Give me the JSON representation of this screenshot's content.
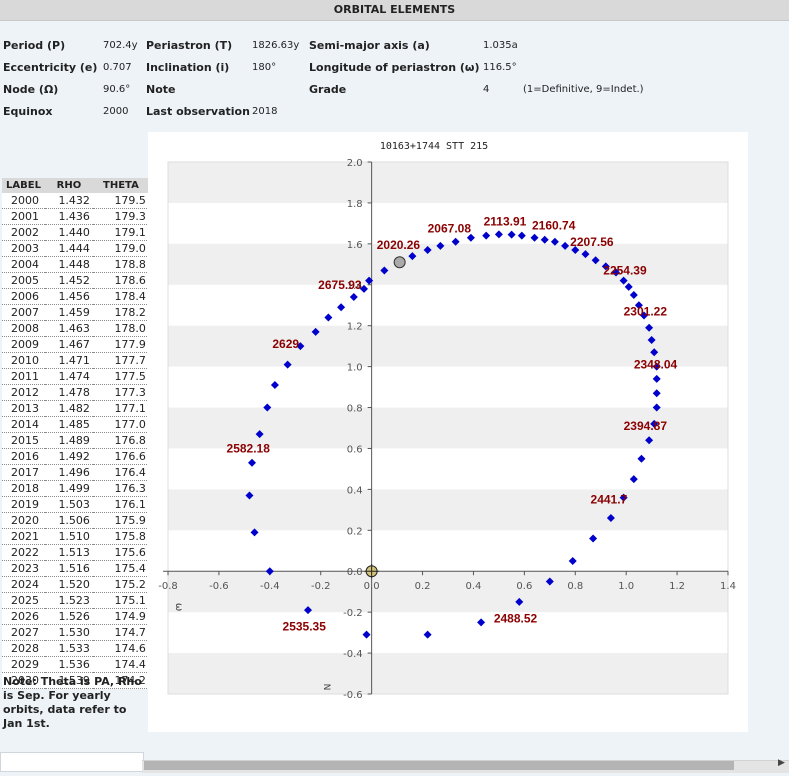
{
  "header": {
    "title": "ORBITAL ELEMENTS"
  },
  "elements": {
    "period": {
      "label": "Period (P)",
      "value": "702.4y"
    },
    "periastron": {
      "label": "Periastron (T)",
      "value": "1826.63y"
    },
    "semi_major": {
      "label": "Semi-major axis (a)",
      "value": "1.035a"
    },
    "eccentricity": {
      "label": "Eccentricity (e)",
      "value": "0.707"
    },
    "inclination": {
      "label": "Inclination (i)",
      "value": "180°"
    },
    "long_periastron": {
      "label": "Longitude of periastron (ω)",
      "value": "116.5°"
    },
    "node": {
      "label": "Node (Ω)",
      "value": "90.6°"
    },
    "note_label": "Note",
    "grade": {
      "label": "Grade",
      "value": "4",
      "hint": "(1=Definitive, 9=Indet.)"
    },
    "equinox": {
      "label": "Equinox",
      "value": "2000"
    },
    "last_obs": {
      "label": "Last observation",
      "value": "2018"
    }
  },
  "table": {
    "headers": [
      "LABEL",
      "RHO",
      "THETA"
    ],
    "rows": [
      [
        "2000",
        "1.432",
        "179.5"
      ],
      [
        "2001",
        "1.436",
        "179.3"
      ],
      [
        "2002",
        "1.440",
        "179.1"
      ],
      [
        "2003",
        "1.444",
        "179.0"
      ],
      [
        "2004",
        "1.448",
        "178.8"
      ],
      [
        "2005",
        "1.452",
        "178.6"
      ],
      [
        "2006",
        "1.456",
        "178.4"
      ],
      [
        "2007",
        "1.459",
        "178.2"
      ],
      [
        "2008",
        "1.463",
        "178.0"
      ],
      [
        "2009",
        "1.467",
        "177.9"
      ],
      [
        "2010",
        "1.471",
        "177.7"
      ],
      [
        "2011",
        "1.474",
        "177.5"
      ],
      [
        "2012",
        "1.478",
        "177.3"
      ],
      [
        "2013",
        "1.482",
        "177.1"
      ],
      [
        "2014",
        "1.485",
        "177.0"
      ],
      [
        "2015",
        "1.489",
        "176.8"
      ],
      [
        "2016",
        "1.492",
        "176.6"
      ],
      [
        "2017",
        "1.496",
        "176.4"
      ],
      [
        "2018",
        "1.499",
        "176.3"
      ],
      [
        "2019",
        "1.503",
        "176.1"
      ],
      [
        "2020",
        "1.506",
        "175.9"
      ],
      [
        "2021",
        "1.510",
        "175.8"
      ],
      [
        "2022",
        "1.513",
        "175.6"
      ],
      [
        "2023",
        "1.516",
        "175.4"
      ],
      [
        "2024",
        "1.520",
        "175.2"
      ],
      [
        "2025",
        "1.523",
        "175.1"
      ],
      [
        "2026",
        "1.526",
        "174.9"
      ],
      [
        "2027",
        "1.530",
        "174.7"
      ],
      [
        "2028",
        "1.533",
        "174.6"
      ],
      [
        "2029",
        "1.536",
        "174.4"
      ],
      [
        "2030",
        "1.539",
        "174.2"
      ]
    ]
  },
  "note": "Note: Theta is PA, Rho is Sep. For yearly orbits, data refer to Jan 1st.",
  "chart_data": {
    "type": "scatter",
    "title": "10163+1744 STT 215",
    "xlim": [
      -0.8,
      1.4
    ],
    "ylim": [
      -0.6,
      2.0
    ],
    "xticks": [
      "-0.8",
      "-0.6",
      "-0.4",
      "-0.2",
      "0.0",
      "0.2",
      "0.4",
      "0.6",
      "0.8",
      "1.0",
      "1.2",
      "1.4"
    ],
    "yticks": [
      "2.0",
      "1.8",
      "1.6",
      "1.4",
      "1.2",
      "1.0",
      "0.8",
      "0.6",
      "0.4",
      "0.2",
      "0.0",
      "-0.2",
      "-0.4",
      "-0.6"
    ],
    "east_label": "ω",
    "north_label": "N",
    "banded_rows": true,
    "colors": {
      "points": "#0000cc",
      "labels": "#8b0000",
      "band": "#efefef",
      "axis": "#555555",
      "current": "#aaaaaa",
      "origin": "#d4c47a"
    },
    "points": [
      [
        -0.01,
        1.42
      ],
      [
        0.05,
        1.47
      ],
      [
        0.16,
        1.54
      ],
      [
        0.22,
        1.57
      ],
      [
        0.27,
        1.59
      ],
      [
        0.33,
        1.61
      ],
      [
        0.39,
        1.63
      ],
      [
        0.45,
        1.64
      ],
      [
        0.5,
        1.646
      ],
      [
        0.55,
        1.645
      ],
      [
        0.59,
        1.64
      ],
      [
        0.64,
        1.63
      ],
      [
        0.68,
        1.62
      ],
      [
        0.72,
        1.61
      ],
      [
        0.76,
        1.59
      ],
      [
        0.8,
        1.57
      ],
      [
        0.84,
        1.55
      ],
      [
        0.88,
        1.52
      ],
      [
        0.92,
        1.49
      ],
      [
        0.96,
        1.46
      ],
      [
        0.99,
        1.42
      ],
      [
        1.01,
        1.39
      ],
      [
        1.03,
        1.35
      ],
      [
        1.05,
        1.3
      ],
      [
        1.07,
        1.25
      ],
      [
        1.09,
        1.19
      ],
      [
        1.1,
        1.13
      ],
      [
        1.11,
        1.07
      ],
      [
        1.12,
        1.0
      ],
      [
        1.12,
        0.94
      ],
      [
        1.12,
        0.87
      ],
      [
        1.12,
        0.8
      ],
      [
        1.11,
        0.72
      ],
      [
        1.09,
        0.64
      ],
      [
        1.06,
        0.55
      ],
      [
        1.03,
        0.45
      ],
      [
        0.99,
        0.36
      ],
      [
        0.94,
        0.26
      ],
      [
        0.87,
        0.16
      ],
      [
        0.79,
        0.05
      ],
      [
        0.7,
        -0.05
      ],
      [
        0.58,
        -0.15
      ],
      [
        0.43,
        -0.25
      ],
      [
        0.22,
        -0.31
      ],
      [
        -0.02,
        -0.31
      ],
      [
        -0.25,
        -0.19
      ],
      [
        -0.4,
        0.0
      ],
      [
        -0.46,
        0.19
      ],
      [
        -0.48,
        0.37
      ],
      [
        -0.47,
        0.53
      ],
      [
        -0.44,
        0.67
      ],
      [
        -0.41,
        0.8
      ],
      [
        -0.38,
        0.91
      ],
      [
        -0.33,
        1.01
      ],
      [
        -0.28,
        1.1
      ],
      [
        -0.22,
        1.17
      ],
      [
        -0.17,
        1.24
      ],
      [
        -0.12,
        1.29
      ],
      [
        -0.07,
        1.34
      ],
      [
        -0.03,
        1.38
      ]
    ],
    "current_point": [
      0.11,
      1.51
    ],
    "annotations": [
      {
        "text": "2020.26",
        "x": 0.02,
        "y": 1.575
      },
      {
        "text": "2067.08",
        "x": 0.22,
        "y": 1.655
      },
      {
        "text": "2113.91",
        "x": 0.44,
        "y": 1.69
      },
      {
        "text": "2160.74",
        "x": 0.63,
        "y": 1.67
      },
      {
        "text": "2207.56",
        "x": 0.78,
        "y": 1.59
      },
      {
        "text": "2254.39",
        "x": 0.91,
        "y": 1.45
      },
      {
        "text": "2301.22",
        "x": 0.99,
        "y": 1.25
      },
      {
        "text": "2348.04",
        "x": 1.03,
        "y": 0.99
      },
      {
        "text": "2394.87",
        "x": 0.99,
        "y": 0.69
      },
      {
        "text": "2441.7",
        "x": 0.86,
        "y": 0.33
      },
      {
        "text": "2488.52",
        "x": 0.48,
        "y": -0.25
      },
      {
        "text": "2535.35",
        "x": -0.35,
        "y": -0.29
      },
      {
        "text": "2582.18",
        "x": -0.57,
        "y": 0.58
      },
      {
        "text": "2629",
        "x": -0.39,
        "y": 1.09
      },
      {
        "text": "2675.93",
        "x": -0.21,
        "y": 1.38
      }
    ]
  }
}
